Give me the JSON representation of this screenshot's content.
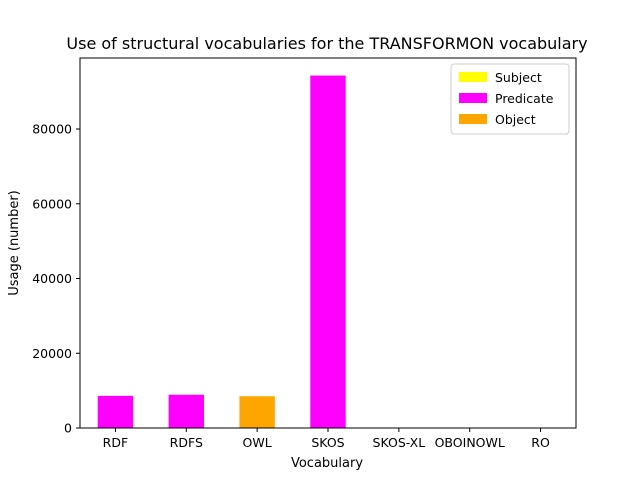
{
  "chart_data": {
    "type": "bar",
    "title": "Use of structural vocabularies for the TRANSFORMON vocabulary",
    "xlabel": "Vocabulary",
    "ylabel": "Usage (number)",
    "categories": [
      "RDF",
      "RDFS",
      "OWL",
      "SKOS",
      "SKOS-XL",
      "OBOINOWL",
      "RO"
    ],
    "series": [
      {
        "name": "Subject",
        "color": "#ffff00",
        "values": [
          0,
          0,
          0,
          0,
          0,
          0,
          0
        ]
      },
      {
        "name": "Predicate",
        "color": "#ff00ff",
        "values": [
          8600,
          8900,
          0,
          94300,
          0,
          0,
          0
        ]
      },
      {
        "name": "Object",
        "color": "#ffa500",
        "values": [
          0,
          0,
          8500,
          0,
          0,
          0,
          0
        ]
      }
    ],
    "ylim": [
      0,
      99000
    ],
    "yticks": [
      0,
      20000,
      40000,
      60000,
      80000
    ],
    "stacked": true,
    "grid": false,
    "legend": "top-right"
  }
}
